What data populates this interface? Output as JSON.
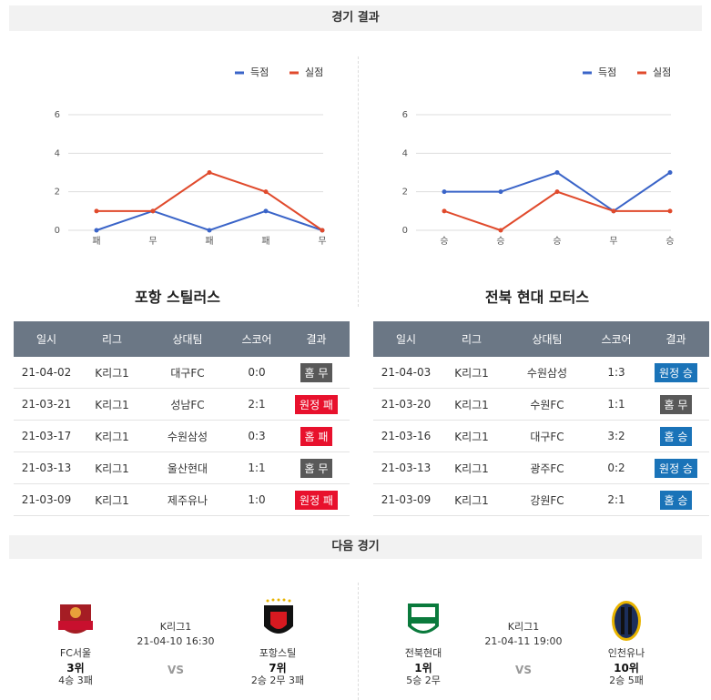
{
  "results_title": "경기 결과",
  "next_title": "다음 경기",
  "chart_data": [
    {
      "type": "line",
      "categories": [
        "패",
        "무",
        "패",
        "패",
        "무"
      ],
      "series": [
        {
          "name": "득점",
          "color": "#3a64c8",
          "values": [
            0,
            1,
            0,
            1,
            0
          ]
        },
        {
          "name": "실점",
          "color": "#e04a2c",
          "values": [
            1,
            1,
            3,
            2,
            0
          ]
        }
      ],
      "ylim": [
        0,
        6
      ],
      "yticks": [
        0,
        2,
        4,
        6
      ],
      "grid": true
    },
    {
      "type": "line",
      "categories": [
        "승",
        "승",
        "승",
        "무",
        "승"
      ],
      "series": [
        {
          "name": "득점",
          "color": "#3a64c8",
          "values": [
            2,
            2,
            3,
            1,
            3
          ]
        },
        {
          "name": "실점",
          "color": "#e04a2c",
          "values": [
            1,
            0,
            2,
            1,
            1
          ]
        }
      ],
      "ylim": [
        0,
        6
      ],
      "yticks": [
        0,
        2,
        4,
        6
      ],
      "grid": true
    }
  ],
  "teams": [
    {
      "name": "포항 스틸러스",
      "table": {
        "headers": [
          "일시",
          "리그",
          "상대팀",
          "스코어",
          "결과"
        ],
        "rows": [
          {
            "date": "21-04-02",
            "league": "K리그1",
            "opponent": "대구FC",
            "score": "0:0",
            "result": "홈 무",
            "color": "#595959"
          },
          {
            "date": "21-03-21",
            "league": "K리그1",
            "opponent": "성남FC",
            "score": "2:1",
            "result": "원정 패",
            "color": "#e8112d"
          },
          {
            "date": "21-03-17",
            "league": "K리그1",
            "opponent": "수원삼성",
            "score": "0:3",
            "result": "홈 패",
            "color": "#e8112d"
          },
          {
            "date": "21-03-13",
            "league": "K리그1",
            "opponent": "울산현대",
            "score": "1:1",
            "result": "홈 무",
            "color": "#595959"
          },
          {
            "date": "21-03-09",
            "league": "K리그1",
            "opponent": "제주유나",
            "score": "1:0",
            "result": "원정 패",
            "color": "#e8112d"
          }
        ]
      }
    },
    {
      "name": "전북 현대 모터스",
      "table": {
        "headers": [
          "일시",
          "리그",
          "상대팀",
          "스코어",
          "결과"
        ],
        "rows": [
          {
            "date": "21-04-03",
            "league": "K리그1",
            "opponent": "수원삼성",
            "score": "1:3",
            "result": "원정 승",
            "color": "#1a73b8"
          },
          {
            "date": "21-03-20",
            "league": "K리그1",
            "opponent": "수원FC",
            "score": "1:1",
            "result": "홈 무",
            "color": "#595959"
          },
          {
            "date": "21-03-16",
            "league": "K리그1",
            "opponent": "대구FC",
            "score": "3:2",
            "result": "홈 승",
            "color": "#1a73b8"
          },
          {
            "date": "21-03-13",
            "league": "K리그1",
            "opponent": "광주FC",
            "score": "0:2",
            "result": "원정 승",
            "color": "#1a73b8"
          },
          {
            "date": "21-03-09",
            "league": "K리그1",
            "opponent": "강원FC",
            "score": "2:1",
            "result": "홈 승",
            "color": "#1a73b8"
          }
        ]
      }
    }
  ],
  "next_matches": [
    {
      "home": {
        "name": "FC서울",
        "rank": "3위",
        "record": "4승 3패"
      },
      "league": "K리그1",
      "time": "21-04-10 16:30",
      "vs": "VS",
      "away": {
        "name": "포항스틸",
        "rank": "7위",
        "record": "2승 2무 3패"
      }
    },
    {
      "home": {
        "name": "전북현대",
        "rank": "1위",
        "record": "5승 2무"
      },
      "league": "K리그1",
      "time": "21-04-11 19:00",
      "vs": "VS",
      "away": {
        "name": "인천유나",
        "rank": "10위",
        "record": "2승 5패"
      }
    }
  ]
}
